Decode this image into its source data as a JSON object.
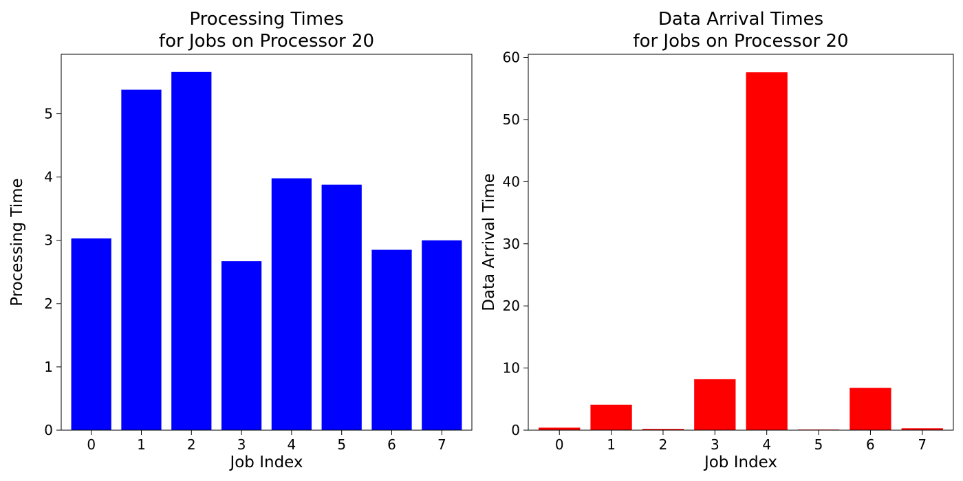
{
  "chart_data": [
    {
      "type": "bar",
      "title_lines": [
        "Processing Times",
        "for Jobs on Processor 20"
      ],
      "xlabel": "Job Index",
      "ylabel": "Processing Time",
      "categories": [
        "0",
        "1",
        "2",
        "3",
        "4",
        "5",
        "6",
        "7"
      ],
      "values": [
        3.03,
        5.38,
        5.66,
        2.67,
        3.98,
        3.88,
        2.85,
        3.0
      ],
      "ylim": [
        0,
        5.94
      ],
      "yticks": [
        0,
        1,
        2,
        3,
        4,
        5
      ],
      "color": "#0000ff",
      "grid": false,
      "legend": "none"
    },
    {
      "type": "bar",
      "title_lines": [
        "Data Arrival Times",
        "for Jobs on Processor 20"
      ],
      "xlabel": "Job Index",
      "ylabel": "Data Arrival Time",
      "categories": [
        "0",
        "1",
        "2",
        "3",
        "4",
        "5",
        "6",
        "7"
      ],
      "values": [
        0.4,
        4.1,
        0.2,
        8.2,
        57.6,
        0.1,
        6.8,
        0.3
      ],
      "ylim": [
        0,
        60.5
      ],
      "yticks": [
        0,
        10,
        20,
        30,
        40,
        50,
        60
      ],
      "color": "#ff0000",
      "grid": false,
      "legend": "none"
    }
  ]
}
